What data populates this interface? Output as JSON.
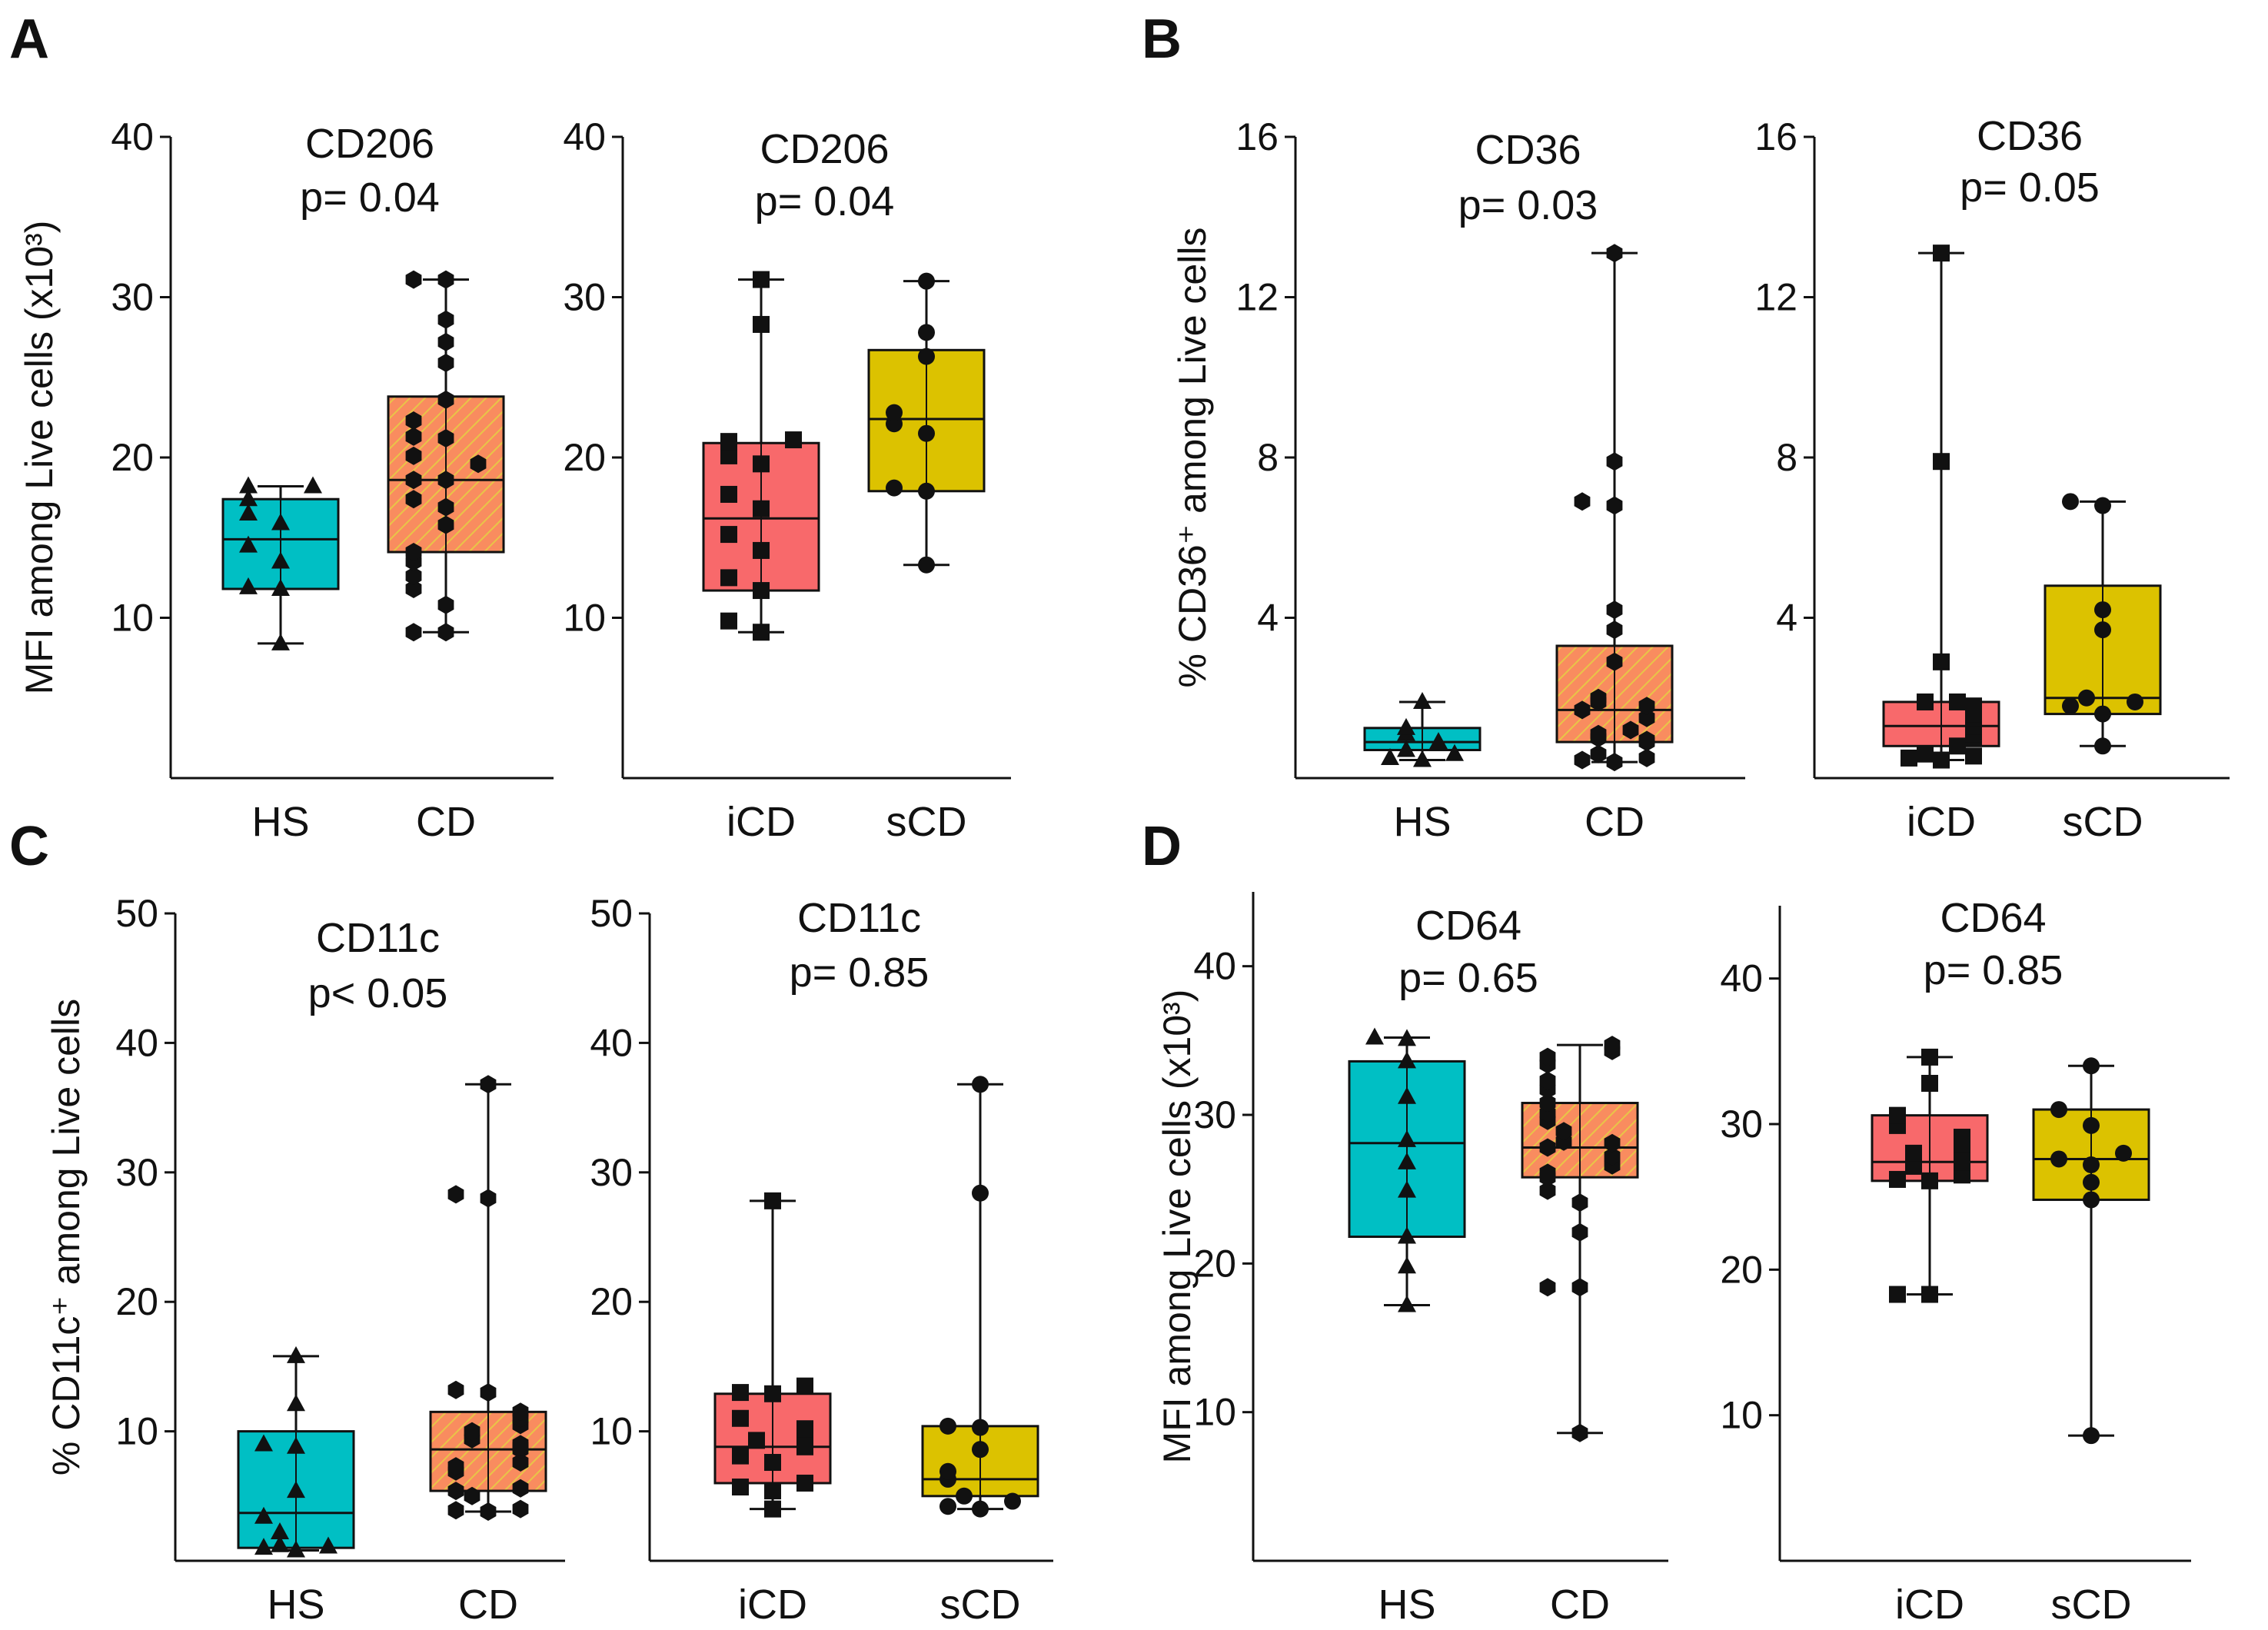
{
  "figure": {
    "panel_letters": [
      "A",
      "B",
      "C",
      "D"
    ]
  },
  "colors": {
    "HS": "#00BFC4",
    "CD": "#F98C5F",
    "CD_hatch": "#E8C547",
    "iCD": "#F8696B",
    "sCD": "#DCC200",
    "ink": "#111111"
  },
  "chart_data": [
    {
      "id": "A1",
      "panel": "A",
      "type": "box",
      "title": "CD206",
      "subtitle": "p= 0.04",
      "ylabel": "MFI among Live cells (x10³)",
      "ylim": [
        0,
        40
      ],
      "yticks": [
        "10",
        "20",
        "30",
        "40"
      ],
      "categories": [
        "HS",
        "CD"
      ],
      "groups": [
        {
          "name": "HS",
          "marker": "triangle",
          "fill": "HS",
          "hatch": false,
          "min": 8.4,
          "q1": 11.8,
          "median": 14.9,
          "q3": 17.4,
          "max": 18.2,
          "points": [
            8.4,
            11.8,
            11.9,
            13.5,
            14.5,
            15.9,
            16.5,
            17.4,
            18.2,
            18.2
          ]
        },
        {
          "name": "CD",
          "marker": "hexagon",
          "fill": "CD",
          "hatch": true,
          "min": 9.1,
          "q1": 14.1,
          "median": 18.6,
          "q3": 23.8,
          "max": 31.1,
          "points": [
            9.1,
            9.1,
            10.8,
            11.8,
            12.6,
            13.5,
            14.1,
            15.8,
            16.9,
            17.4,
            18.6,
            18.6,
            19.6,
            20.1,
            21.2,
            21.3,
            22.3,
            23.6,
            25.9,
            27.2,
            28.6,
            31.1,
            31.1
          ]
        }
      ]
    },
    {
      "id": "A2",
      "panel": "A",
      "type": "box",
      "title": "CD206",
      "subtitle": "p= 0.04",
      "ylabel": "",
      "ylim": [
        0,
        40
      ],
      "yticks": [
        "10",
        "20",
        "30",
        "40"
      ],
      "categories": [
        "iCD",
        "sCD"
      ],
      "groups": [
        {
          "name": "iCD",
          "marker": "square",
          "fill": "iCD",
          "hatch": false,
          "min": 9.1,
          "q1": 11.7,
          "median": 16.2,
          "q3": 20.9,
          "max": 31.1,
          "points": [
            9.1,
            9.8,
            11.7,
            12.5,
            14.2,
            15.2,
            16.8,
            17.7,
            19.6,
            20.1,
            21.0,
            21.1,
            28.3,
            31.1
          ]
        },
        {
          "name": "sCD",
          "marker": "circle",
          "fill": "sCD",
          "hatch": false,
          "min": 13.3,
          "q1": 17.9,
          "median": 22.4,
          "q3": 26.7,
          "max": 31.0,
          "points": [
            13.3,
            17.9,
            18.1,
            21.5,
            22.1,
            22.8,
            26.3,
            27.8,
            31.0
          ]
        }
      ]
    },
    {
      "id": "B1",
      "panel": "B",
      "type": "box",
      "title": "CD36",
      "subtitle": "p= 0.03",
      "ylabel": "% CD36⁺ among Live cells",
      "ylim": [
        0,
        16
      ],
      "yticks": [
        "4",
        "8",
        "12",
        "16"
      ],
      "categories": [
        "HS",
        "CD"
      ],
      "groups": [
        {
          "name": "HS",
          "marker": "triangle",
          "fill": "HS",
          "hatch": false,
          "min": 0.45,
          "q1": 0.7,
          "median": 0.9,
          "q3": 1.25,
          "max": 1.9,
          "points": [
            0.45,
            0.5,
            0.6,
            0.7,
            0.85,
            0.9,
            1.1,
            1.25,
            1.9
          ]
        },
        {
          "name": "CD",
          "marker": "hexagon",
          "fill": "CD",
          "hatch": true,
          "min": 0.4,
          "q1": 0.9,
          "median": 1.7,
          "q3": 3.3,
          "max": 13.1,
          "points": [
            0.4,
            0.45,
            0.5,
            0.6,
            0.9,
            0.95,
            1.0,
            1.1,
            1.2,
            1.5,
            1.7,
            1.8,
            1.9,
            2.0,
            2.9,
            3.7,
            4.2,
            6.8,
            6.9,
            7.9,
            13.1
          ]
        }
      ]
    },
    {
      "id": "B2",
      "panel": "B",
      "type": "box",
      "title": "CD36",
      "subtitle": "p= 0.05",
      "ylabel": "",
      "ylim": [
        0,
        16
      ],
      "yticks": [
        "4",
        "8",
        "12",
        "16"
      ],
      "categories": [
        "iCD",
        "sCD"
      ],
      "groups": [
        {
          "name": "iCD",
          "marker": "square",
          "fill": "iCD",
          "hatch": false,
          "min": 0.45,
          "q1": 0.8,
          "median": 1.3,
          "q3": 1.9,
          "max": 13.1,
          "points": [
            0.45,
            0.5,
            0.55,
            0.6,
            0.8,
            1.0,
            1.1,
            1.3,
            1.5,
            1.6,
            1.8,
            1.9,
            1.9,
            2.9,
            7.9,
            13.1
          ]
        },
        {
          "name": "sCD",
          "marker": "circle",
          "fill": "sCD",
          "hatch": false,
          "min": 0.8,
          "q1": 1.6,
          "median": 2.0,
          "q3": 4.8,
          "max": 6.9,
          "points": [
            0.8,
            1.6,
            1.8,
            1.9,
            2.0,
            3.7,
            4.2,
            6.8,
            6.9
          ]
        }
      ]
    },
    {
      "id": "C1",
      "panel": "C",
      "type": "box",
      "title": "CD11c",
      "subtitle": "p< 0.05",
      "ylabel": "% CD11c⁺ among Live cells",
      "ylim": [
        0,
        50
      ],
      "yticks": [
        "10",
        "20",
        "30",
        "40",
        "50"
      ],
      "categories": [
        "HS",
        "CD"
      ],
      "groups": [
        {
          "name": "HS",
          "marker": "triangle",
          "fill": "HS",
          "hatch": false,
          "min": 0.8,
          "q1": 1.0,
          "median": 3.7,
          "q3": 10.0,
          "max": 15.8,
          "points": [
            0.8,
            1.0,
            1.1,
            1.2,
            2.2,
            3.4,
            5.4,
            8.8,
            9.0,
            12.1,
            15.8
          ]
        },
        {
          "name": "CD",
          "marker": "hexagon",
          "fill": "CD",
          "hatch": true,
          "min": 3.8,
          "q1": 5.4,
          "median": 8.6,
          "q3": 11.5,
          "max": 36.8,
          "points": [
            3.8,
            3.9,
            4.0,
            5.0,
            5.4,
            5.6,
            6.9,
            7.3,
            7.6,
            8.6,
            8.8,
            9.0,
            9.4,
            10.0,
            10.5,
            11.0,
            11.5,
            13.0,
            13.2,
            28.0,
            28.3,
            36.8
          ]
        }
      ]
    },
    {
      "id": "C2",
      "panel": "C",
      "type": "box",
      "title": "CD11c",
      "subtitle": "p= 0.85",
      "ylabel": "",
      "ylim": [
        0,
        50
      ],
      "yticks": [
        "10",
        "20",
        "30",
        "40",
        "50"
      ],
      "categories": [
        "iCD",
        "sCD"
      ],
      "groups": [
        {
          "name": "iCD",
          "marker": "square",
          "fill": "iCD",
          "hatch": false,
          "min": 4.0,
          "q1": 6.0,
          "median": 8.8,
          "q3": 12.9,
          "max": 27.8,
          "points": [
            4.0,
            5.4,
            5.7,
            6.0,
            7.6,
            8.1,
            8.8,
            9.0,
            9.3,
            10.2,
            11.0,
            12.9,
            13.0,
            13.5,
            27.8
          ]
        },
        {
          "name": "sCD",
          "marker": "circle",
          "fill": "sCD",
          "hatch": false,
          "min": 4.0,
          "q1": 5.0,
          "median": 6.3,
          "q3": 10.4,
          "max": 36.8,
          "points": [
            4.0,
            4.2,
            4.6,
            5.0,
            6.3,
            6.9,
            8.6,
            10.3,
            10.4,
            28.4,
            36.8
          ]
        }
      ]
    },
    {
      "id": "D1",
      "panel": "D",
      "type": "box",
      "title": "CD64",
      "subtitle": "p= 0.65",
      "ylabel": "MFI among Live cells (x10³)",
      "ylim": [
        0,
        45
      ],
      "yticks": [
        "10",
        "20",
        "30",
        "40"
      ],
      "categories": [
        "HS",
        "CD"
      ],
      "groups": [
        {
          "name": "HS",
          "marker": "triangle",
          "fill": "HS",
          "hatch": false,
          "min": 17.2,
          "q1": 21.8,
          "median": 28.1,
          "q3": 33.6,
          "max": 35.2,
          "points": [
            17.2,
            19.8,
            21.8,
            24.9,
            26.8,
            28.3,
            31.2,
            33.6,
            35.1,
            35.2
          ]
        },
        {
          "name": "CD",
          "marker": "hexagon",
          "fill": "CD",
          "hatch": true,
          "min": 8.6,
          "q1": 25.8,
          "median": 27.8,
          "q3": 30.8,
          "max": 34.7,
          "points": [
            8.6,
            18.4,
            18.4,
            22.1,
            24.1,
            24.9,
            25.8,
            26.1,
            26.6,
            27.2,
            27.8,
            28.1,
            28.2,
            28.9,
            29.6,
            30.1,
            30.8,
            31.7,
            32.3,
            33.4,
            33.9,
            34.3,
            34.7
          ]
        }
      ]
    },
    {
      "id": "D2",
      "panel": "D",
      "type": "box",
      "title": "CD64",
      "subtitle": "p= 0.85",
      "ylabel": "",
      "ylim": [
        0,
        45
      ],
      "yticks": [
        "10",
        "20",
        "30",
        "40"
      ],
      "categories": [
        "iCD",
        "sCD"
      ],
      "groups": [
        {
          "name": "iCD",
          "marker": "square",
          "fill": "iCD",
          "hatch": false,
          "min": 18.3,
          "q1": 26.1,
          "median": 27.4,
          "q3": 30.6,
          "max": 34.6,
          "points": [
            18.3,
            18.3,
            26.1,
            26.2,
            26.5,
            27.1,
            27.4,
            27.7,
            28.0,
            28.6,
            29.1,
            29.9,
            30.6,
            32.8,
            34.6
          ]
        },
        {
          "name": "sCD",
          "marker": "circle",
          "fill": "sCD",
          "hatch": false,
          "min": 8.6,
          "q1": 24.8,
          "median": 27.6,
          "q3": 31.0,
          "max": 34.0,
          "points": [
            8.6,
            24.8,
            26.0,
            27.2,
            27.6,
            28.0,
            29.9,
            31.0,
            34.0
          ]
        }
      ]
    }
  ]
}
